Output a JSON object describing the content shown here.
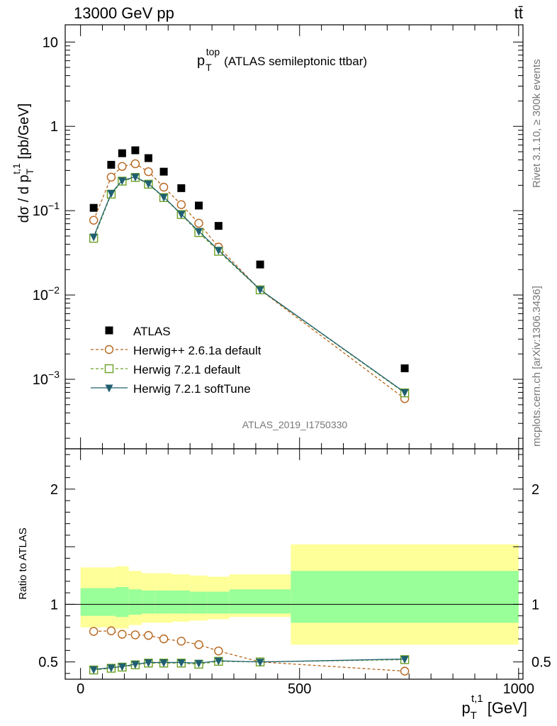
{
  "header": {
    "beam_label": "13000 GeV pp",
    "process_label": "tt̄"
  },
  "side": {
    "rivet_label": "Rivet 3.1.10, ≥ 300k events",
    "mcplots_label": "mcplots.cern.ch [arXiv:1306.3436]"
  },
  "chart_data": [
    {
      "type": "scatter",
      "panel": "main",
      "title": "p_T^top (ATLAS semileptonic ttbar)",
      "title_main": "p",
      "title_sub": "T",
      "title_sup": "top",
      "title_rest": "(ATLAS semileptonic ttbar)",
      "ylabel": "dσ / d p_T^{t,1} [pb/GeV]",
      "ylabel_main": "dσ / d p",
      "ylabel_sub": "T",
      "ylabel_sup": "t,1",
      "ylabel_rest": " [pb/GeV]",
      "yscale": "log",
      "ylim": [
        0.00015,
        16
      ],
      "xlim": [
        -35,
        1010
      ],
      "y_ticks": [
        {
          "value": 10,
          "label": "10"
        },
        {
          "value": 1,
          "label": "1"
        },
        {
          "value": 0.1,
          "label": "10",
          "exp": "−1"
        },
        {
          "value": 0.01,
          "label": "10",
          "exp": "−2"
        },
        {
          "value": 0.001,
          "label": "10",
          "exp": "−3"
        }
      ],
      "annotation": "ATLAS_2019_I1750330",
      "legend_position": "lower-left",
      "series": [
        {
          "name": "ATLAS",
          "marker": "filled-square",
          "line": "none",
          "color": "#000000",
          "x": [
            30,
            70,
            95,
            125,
            155,
            190,
            230,
            270,
            315,
            410,
            740
          ],
          "y": [
            0.108,
            0.35,
            0.48,
            0.52,
            0.42,
            0.29,
            0.185,
            0.115,
            0.066,
            0.023,
            0.00135
          ]
        },
        {
          "name": "Herwig++ 2.6.1a default",
          "marker": "open-circle",
          "line": "dashed",
          "color": "#b5651d",
          "x": [
            30,
            70,
            95,
            125,
            155,
            190,
            230,
            270,
            315,
            410,
            740
          ],
          "y": [
            0.077,
            0.25,
            0.335,
            0.36,
            0.29,
            0.19,
            0.118,
            0.071,
            0.037,
            0.0115,
            0.00059
          ]
        },
        {
          "name": "Herwig 7.2.1 default",
          "marker": "open-square",
          "line": "dashed",
          "color": "#6aa121",
          "x": [
            30,
            70,
            95,
            125,
            155,
            190,
            230,
            270,
            315,
            410,
            740
          ],
          "y": [
            0.047,
            0.157,
            0.224,
            0.248,
            0.206,
            0.143,
            0.09,
            0.055,
            0.033,
            0.0115,
            0.00069
          ]
        },
        {
          "name": "Herwig 7.2.1 softTune",
          "marker": "filled-triangle-down",
          "line": "solid",
          "color": "#1f5f6f",
          "x": [
            30,
            70,
            95,
            125,
            155,
            190,
            230,
            270,
            315,
            410,
            740
          ],
          "y": [
            0.049,
            0.161,
            0.228,
            0.252,
            0.209,
            0.145,
            0.091,
            0.057,
            0.034,
            0.0116,
            0.0007
          ]
        }
      ]
    },
    {
      "type": "line",
      "panel": "ratio",
      "ylabel": "Ratio to ATLAS",
      "xlabel": "p_T^{t,1} [GeV]",
      "xlabel_main": "p",
      "xlabel_sub": "T",
      "xlabel_sup": "t,1",
      "xlabel_rest": " [GeV]",
      "xlim": [
        -35,
        1010
      ],
      "ylim": [
        0.35,
        2.35
      ],
      "x_ticks": [
        {
          "value": 0,
          "label": "0"
        },
        {
          "value": 500,
          "label": "500"
        },
        {
          "value": 1000,
          "label": "1000"
        }
      ],
      "y_ticks": [
        {
          "value": 0.5,
          "label": "0.5"
        },
        {
          "value": 1,
          "label": "1"
        },
        {
          "value": 2,
          "label": "2"
        }
      ],
      "bands": {
        "edges": [
          0,
          80,
          110,
          140,
          170,
          210,
          250,
          290,
          340,
          480,
          1000
        ],
        "stat_lo": [
          0.9,
          0.89,
          0.91,
          0.92,
          0.92,
          0.92,
          0.92,
          0.92,
          0.92,
          0.84
        ],
        "stat_hi": [
          1.14,
          1.15,
          1.13,
          1.12,
          1.12,
          1.12,
          1.11,
          1.11,
          1.13,
          1.29
        ],
        "tot_lo": [
          0.8,
          0.79,
          0.82,
          0.84,
          0.84,
          0.85,
          0.86,
          0.87,
          0.89,
          0.65
        ],
        "tot_hi": [
          1.32,
          1.33,
          1.29,
          1.27,
          1.27,
          1.26,
          1.25,
          1.24,
          1.26,
          1.52
        ],
        "stat_color": "#99ff99",
        "tot_color": "#ffff99"
      },
      "series": [
        {
          "name": "Herwig++ 2.6.1a default",
          "marker": "open-circle",
          "line": "dashed",
          "color": "#b5651d",
          "x": [
            30,
            70,
            95,
            125,
            155,
            190,
            230,
            270,
            315,
            410,
            740
          ],
          "y": [
            0.765,
            0.77,
            0.74,
            0.735,
            0.73,
            0.7,
            0.68,
            0.65,
            0.595,
            0.5,
            0.42
          ]
        },
        {
          "name": "Herwig 7.2.1 default",
          "marker": "open-square",
          "line": "dashed",
          "color": "#6aa121",
          "x": [
            30,
            70,
            95,
            125,
            155,
            190,
            230,
            270,
            315,
            410,
            740
          ],
          "y": [
            0.43,
            0.445,
            0.455,
            0.475,
            0.49,
            0.49,
            0.49,
            0.48,
            0.505,
            0.5,
            0.52
          ]
        },
        {
          "name": "Herwig 7.2.1 softTune",
          "marker": "filled-triangle-down",
          "line": "solid",
          "color": "#1f5f6f",
          "x": [
            30,
            70,
            95,
            125,
            155,
            190,
            230,
            270,
            315,
            410,
            740
          ],
          "y": [
            0.435,
            0.45,
            0.46,
            0.48,
            0.495,
            0.495,
            0.495,
            0.49,
            0.51,
            0.5,
            0.525
          ]
        }
      ]
    }
  ]
}
